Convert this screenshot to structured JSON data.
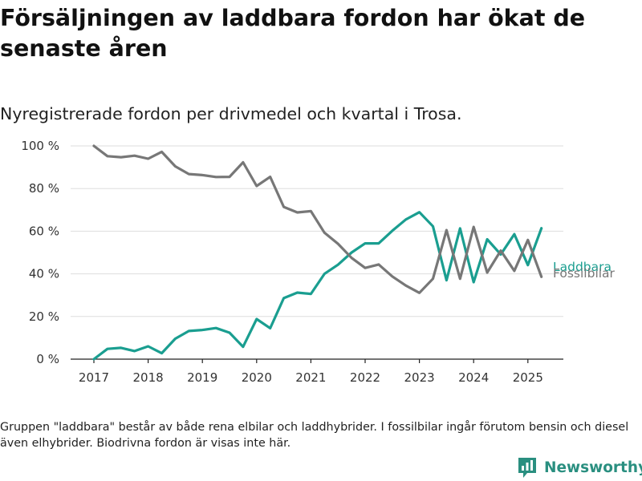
{
  "title": "Försäljningen av laddbara fordon har ökat de senaste åren",
  "subtitle": "Nyregistrerade fordon per drivmedel och kvartal i Trosa.",
  "footnote": "Gruppen \"laddbara\" består av både rena elbilar och laddhybrider. I fossilbilar ingår förutom bensin och diesel även elhybrider. Biodrivna fordon är visas inte här.",
  "logo": {
    "text": "Newsworthy",
    "icon": "bar-chart-logo-icon",
    "color": "#2a8f80"
  },
  "chart_data": {
    "type": "line",
    "ylim": [
      0,
      100
    ],
    "y_ticks": [
      0,
      20,
      40,
      60,
      80,
      100
    ],
    "y_tick_format": "{v} %",
    "x_ticks": [
      "2017",
      "2018",
      "2019",
      "2020",
      "2021",
      "2022",
      "2023",
      "2024",
      "2025"
    ],
    "grid": true,
    "x": [
      "2017Q1",
      "2017Q2",
      "2017Q3",
      "2017Q4",
      "2018Q1",
      "2018Q2",
      "2018Q3",
      "2018Q4",
      "2019Q1",
      "2019Q2",
      "2019Q3",
      "2019Q4",
      "2020Q1",
      "2020Q2",
      "2020Q3",
      "2020Q4",
      "2021Q1",
      "2021Q2",
      "2021Q3",
      "2021Q4",
      "2022Q1",
      "2022Q2",
      "2022Q3",
      "2022Q4",
      "2023Q1",
      "2023Q2",
      "2023Q3",
      "2023Q4",
      "2024Q1",
      "2024Q2",
      "2024Q3",
      "2024Q4",
      "2025Q1",
      "2025Q2"
    ],
    "series": [
      {
        "name": "Laddbara",
        "color": "#1a9e90",
        "values": [
          0,
          4.8,
          5.3,
          3.8,
          6,
          2.8,
          9.6,
          13.2,
          13.7,
          14.6,
          12.4,
          5.8,
          18.8,
          14.5,
          28.6,
          31.2,
          30.6,
          40,
          44.3,
          50,
          54.3,
          54.3,
          60.2,
          65.5,
          68.9,
          62.3,
          37,
          61.3,
          36.1,
          56.2,
          49.1,
          58.6,
          44.1,
          61.4
        ]
      },
      {
        "name": "Fossilbilar",
        "color": "#777777",
        "values": [
          100,
          95.2,
          94.7,
          95.4,
          94,
          97.2,
          90.4,
          86.8,
          86.3,
          85.4,
          85.5,
          92.3,
          81.2,
          85.5,
          71.4,
          68.8,
          69.4,
          59.3,
          54.1,
          47.5,
          42.8,
          44.4,
          38.8,
          34.5,
          31.1,
          37.7,
          60.5,
          37.7,
          62,
          40.6,
          50.9,
          41.4,
          55.9,
          38.6
        ]
      }
    ]
  }
}
